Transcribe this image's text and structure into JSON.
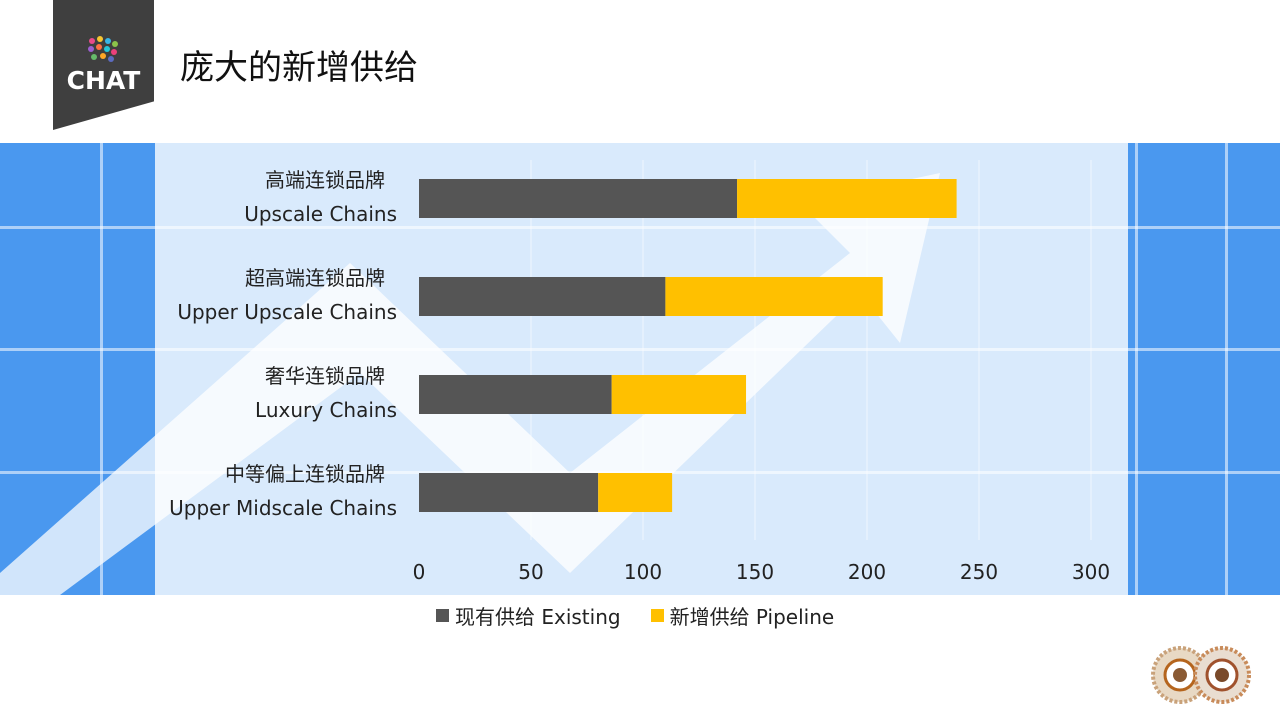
{
  "title": "庞大的新增供给",
  "logo": {
    "text": "CHAT",
    "icon": "colorful-dots-logo"
  },
  "corner_logo": {
    "icon": "decorative-rings-logo"
  },
  "colors": {
    "existing": "#555555",
    "pipeline": "#ffc000",
    "band_blue": "#4a98ef",
    "band_light": "#cfe4fb"
  },
  "chart_data": {
    "type": "bar",
    "orientation": "horizontal",
    "stacked": true,
    "categories": [
      {
        "zh": "高端连锁品牌",
        "en": "Upscale Chains"
      },
      {
        "zh": "超高端连锁品牌",
        "en": "Upper Upscale Chains"
      },
      {
        "zh": "奢华连锁品牌",
        "en": "Luxury Chains"
      },
      {
        "zh": "中等偏上连锁品牌",
        "en": "Upper Midscale Chains"
      }
    ],
    "series": [
      {
        "name": "现有供给 Existing",
        "values": [
          142,
          110,
          86,
          80
        ]
      },
      {
        "name": "新增供给 Pipeline",
        "values": [
          98,
          97,
          60,
          33
        ]
      }
    ],
    "xlim": [
      0,
      300
    ],
    "xticks": [
      "0",
      "50",
      "100",
      "150",
      "200",
      "250",
      "300"
    ],
    "legend_position": "bottom"
  }
}
